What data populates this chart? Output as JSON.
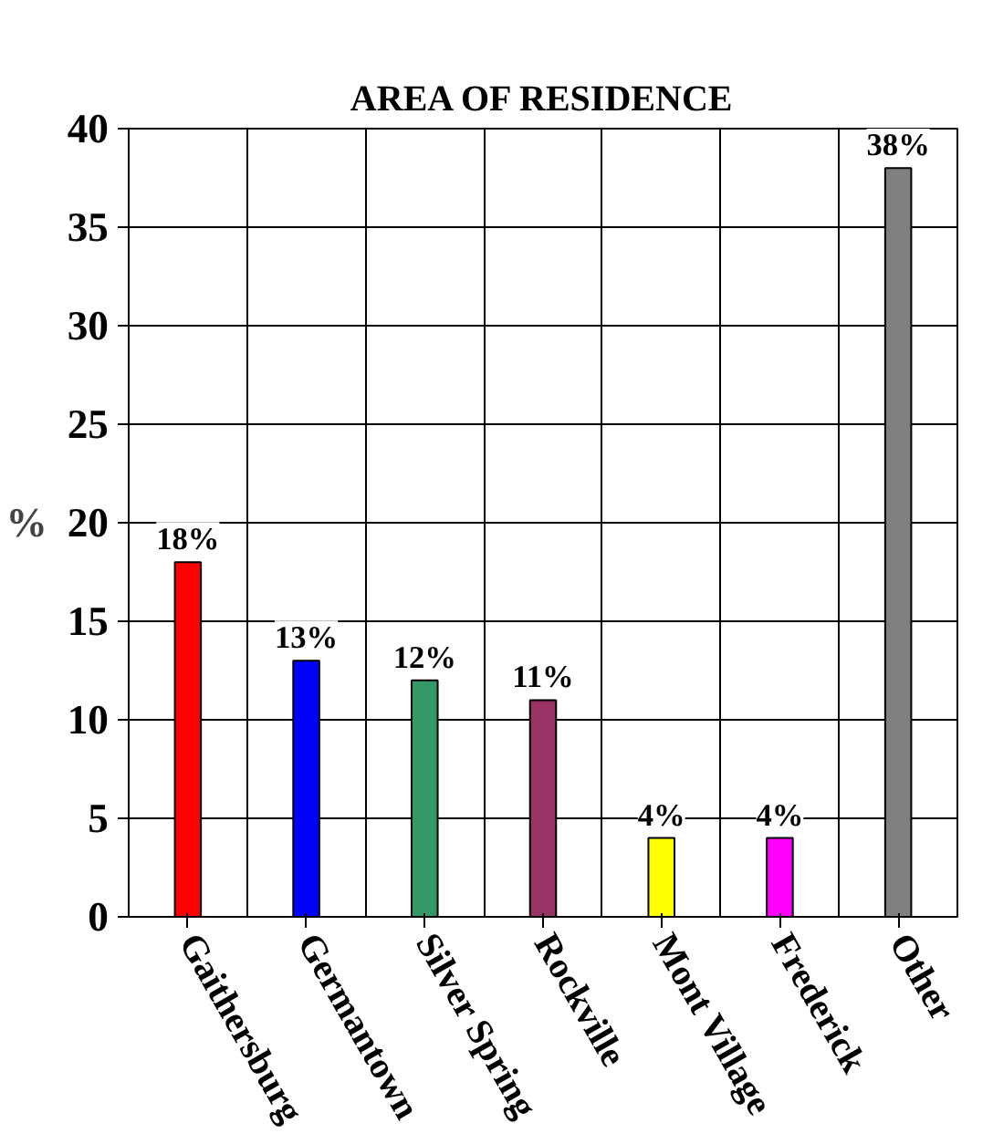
{
  "chart_data": {
    "type": "bar",
    "title": "AREA OF RESIDENCE",
    "ylabel": "%",
    "categories": [
      "Gaithersburg",
      "Germantown",
      "Silver Spring",
      "Rockville",
      "Mont Village",
      "Frederick",
      "Other"
    ],
    "values": [
      18,
      13,
      12,
      11,
      4,
      4,
      38
    ],
    "colors": [
      "#ff0000",
      "#0000ff",
      "#339966",
      "#993366",
      "#ffff00",
      "#ff00ff",
      "#808080"
    ],
    "value_labels": [
      "18%",
      "13%",
      "12%",
      "11%",
      "4%",
      "4%",
      "38%"
    ],
    "ylim": [
      0,
      40
    ],
    "yticks": [
      0,
      5,
      10,
      15,
      20,
      25,
      30,
      35,
      40
    ],
    "grid": true
  }
}
